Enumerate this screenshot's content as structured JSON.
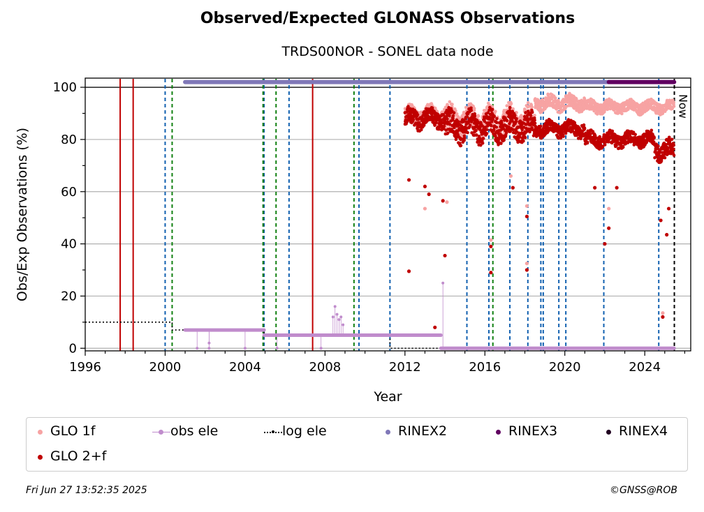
{
  "header": {
    "title": "Observed/Expected GLONASS Observations",
    "subtitle": "TRDS00NOR - SONEL data node"
  },
  "footer": {
    "timestamp": "Fri Jun 27 13:52:35 2025",
    "credit": "©GNSS@ROB"
  },
  "chart_data": {
    "type": "scatter",
    "title": "Observed/Expected GLONASS Observations",
    "subtitle": "TRDS00NOR - SONEL data node",
    "xlabel": "Year",
    "ylabel": "Obs/Exp Observations (%)",
    "xlim": [
      1996,
      2026.3
    ],
    "ylim": [
      -1,
      103.5
    ],
    "x_ticks": [
      1996,
      2000,
      2004,
      2008,
      2012,
      2016,
      2020,
      2024
    ],
    "y_ticks": [
      0,
      20,
      40,
      60,
      80,
      100
    ],
    "grid": "horizontal",
    "now_label": "Now",
    "now_x": 2025.48,
    "colors": {
      "glo1f": "#f7a3a3",
      "glo2f": "#c00000",
      "obs_ele": "#c08ccc",
      "log_ele": "#000000",
      "rinex2": "#8078b8",
      "rinex3": "#600060",
      "rinex4": "#200020",
      "receiver_change": "#c00000",
      "antenna_change": "#1060b0",
      "other_change": "#108010"
    },
    "legend": [
      {
        "label": "GLO 1f",
        "key": "glo1f",
        "kind": "dot"
      },
      {
        "label": "obs ele",
        "key": "obs_ele",
        "kind": "line-dot"
      },
      {
        "label": "log ele",
        "key": "log_ele",
        "kind": "dotted"
      },
      {
        "label": "RINEX2",
        "key": "rinex2",
        "kind": "dot"
      },
      {
        "label": "RINEX3",
        "key": "rinex3",
        "kind": "dot"
      },
      {
        "label": "RINEX4",
        "key": "rinex4",
        "kind": "dot"
      },
      {
        "label": "GLO 2+f",
        "key": "glo2f",
        "kind": "dot"
      }
    ],
    "solid_red_events": [
      1997.75,
      1998.4,
      2007.38
    ],
    "dashed_blue_events": [
      2000.0,
      2004.95,
      2006.2,
      2009.7,
      2011.25,
      2015.1,
      2016.2,
      2017.25,
      2018.15,
      2018.8,
      2018.92,
      2019.7,
      2020.05,
      2021.95,
      2024.7
    ],
    "dashed_green_events": [
      2000.35,
      2004.9,
      2005.55,
      2009.45,
      2016.4
    ],
    "series": [
      {
        "name": "GLO 1f",
        "key": "glo1f",
        "segments": [
          {
            "x0": 2012.0,
            "x1": 2014.0,
            "base": 89,
            "spread": 4
          },
          {
            "x0": 2014.0,
            "x1": 2018.5,
            "base": 87,
            "spread": 6
          },
          {
            "x0": 2018.5,
            "x1": 2021.0,
            "base": 94,
            "spread": 3
          },
          {
            "x0": 2021.0,
            "x1": 2025.47,
            "base": 92.5,
            "spread": 2.5
          }
        ],
        "outliers": [
          [
            2013.0,
            53.5
          ],
          [
            2014.1,
            56
          ],
          [
            2016.3,
            41.5
          ],
          [
            2017.3,
            66
          ],
          [
            2018.1,
            54.5
          ],
          [
            2018.1,
            32.5
          ],
          [
            2022.2,
            53.5
          ],
          [
            2024.9,
            13.5
          ]
        ]
      },
      {
        "name": "GLO 2+f",
        "key": "glo2f",
        "segments": [
          {
            "x0": 2012.0,
            "x1": 2014.0,
            "base": 88,
            "spread": 4
          },
          {
            "x0": 2014.0,
            "x1": 2018.5,
            "base": 85,
            "spread": 6
          },
          {
            "x0": 2018.5,
            "x1": 2021.0,
            "base": 84,
            "spread": 3
          },
          {
            "x0": 2021.0,
            "x1": 2024.5,
            "base": 80,
            "spread": 3
          },
          {
            "x0": 2024.5,
            "x1": 2025.47,
            "base": 76,
            "spread": 4
          }
        ],
        "outliers": [
          [
            2012.2,
            29.5
          ],
          [
            2012.2,
            64.5
          ],
          [
            2013.0,
            62
          ],
          [
            2013.2,
            59
          ],
          [
            2013.5,
            8
          ],
          [
            2013.9,
            56.5
          ],
          [
            2014.0,
            35.5
          ],
          [
            2016.3,
            39
          ],
          [
            2016.3,
            29
          ],
          [
            2017.4,
            61.5
          ],
          [
            2018.1,
            50.5
          ],
          [
            2018.1,
            30
          ],
          [
            2021.5,
            61.5
          ],
          [
            2022.2,
            46
          ],
          [
            2022.6,
            61.5
          ],
          [
            2022.0,
            40
          ],
          [
            2024.8,
            49
          ],
          [
            2024.9,
            12
          ],
          [
            2025.1,
            43.5
          ],
          [
            2025.2,
            53.5
          ]
        ]
      },
      {
        "name": "obs ele",
        "key": "obs_ele",
        "segments": [
          {
            "x0": 2001.0,
            "x1": 2004.95,
            "value": 7
          },
          {
            "x0": 2004.95,
            "x1": 2013.8,
            "value": 5
          },
          {
            "x0": 2013.8,
            "x1": 2025.47,
            "value": 0
          }
        ],
        "spikes": [
          [
            2001.6,
            0
          ],
          [
            2002.2,
            2
          ],
          [
            2002.2,
            0
          ],
          [
            2004.0,
            0
          ],
          [
            2005.6,
            0
          ],
          [
            2007.8,
            0
          ],
          [
            2008.4,
            12
          ],
          [
            2008.5,
            16
          ],
          [
            2008.6,
            13
          ],
          [
            2008.7,
            11
          ],
          [
            2008.8,
            12
          ],
          [
            2008.9,
            9
          ],
          [
            2013.9,
            25
          ]
        ]
      },
      {
        "name": "log ele",
        "key": "log_ele",
        "steps": [
          [
            1996.0,
            10
          ],
          [
            2000.35,
            10
          ],
          [
            2000.35,
            7
          ],
          [
            2004.95,
            7
          ],
          [
            2004.95,
            5
          ],
          [
            2011.25,
            5
          ],
          [
            2011.25,
            0
          ],
          [
            2025.47,
            0
          ]
        ]
      },
      {
        "name": "RINEX2",
        "key": "rinex2",
        "x0": 2001.0,
        "x1": 2022.2,
        "value": 102
      },
      {
        "name": "RINEX3",
        "key": "rinex3",
        "x0": 2022.2,
        "x1": 2025.47,
        "value": 102
      }
    ]
  }
}
